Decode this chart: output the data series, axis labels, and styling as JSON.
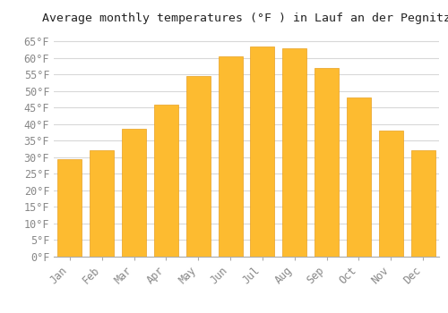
{
  "title": "Average monthly temperatures (°F ) in Lauf an der Pegnitz",
  "months": [
    "Jan",
    "Feb",
    "Mar",
    "Apr",
    "May",
    "Jun",
    "Jul",
    "Aug",
    "Sep",
    "Oct",
    "Nov",
    "Dec"
  ],
  "values": [
    29.5,
    32.0,
    38.5,
    46.0,
    54.5,
    60.5,
    63.5,
    63.0,
    57.0,
    48.0,
    38.0,
    32.0
  ],
  "bar_color": "#FDBB30",
  "bar_edge_color": "#E8A020",
  "background_color": "#ffffff",
  "grid_color": "#d8d8d8",
  "ylim": [
    0,
    68
  ],
  "yticks": [
    0,
    5,
    10,
    15,
    20,
    25,
    30,
    35,
    40,
    45,
    50,
    55,
    60,
    65
  ],
  "ytick_labels": [
    "0°F",
    "5°F",
    "10°F",
    "15°F",
    "20°F",
    "25°F",
    "30°F",
    "35°F",
    "40°F",
    "45°F",
    "50°F",
    "55°F",
    "60°F",
    "65°F"
  ],
  "title_fontsize": 9.5,
  "tick_fontsize": 8.5,
  "font_family": "monospace",
  "tick_color": "#888888",
  "spine_color": "#aaaaaa"
}
